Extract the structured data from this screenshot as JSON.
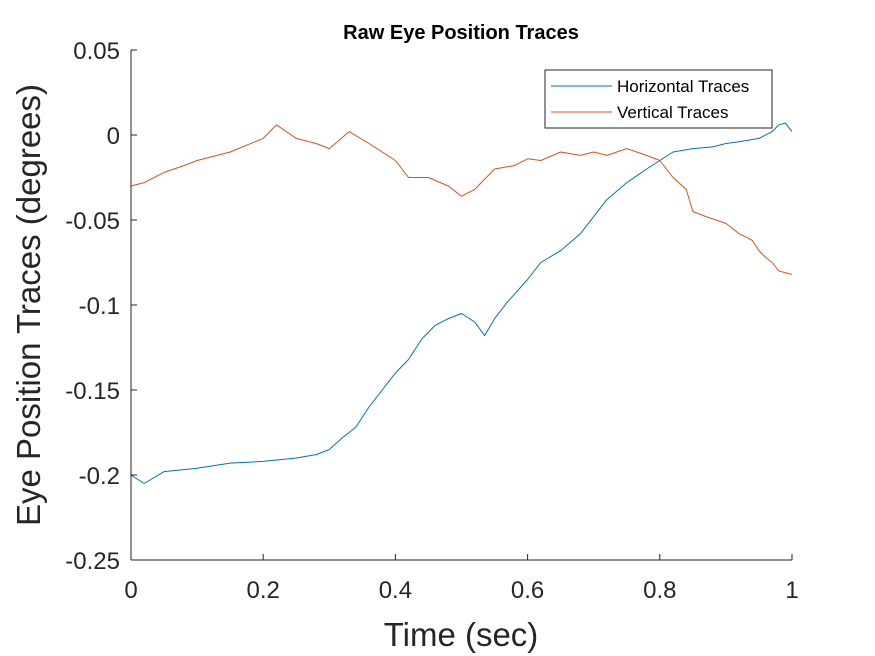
{
  "chart_data": {
    "type": "line",
    "title": "Raw Eye Position Traces",
    "xlabel": "Time (sec)",
    "ylabel": "Eye Position Traces (degrees)",
    "xlim": [
      0,
      1
    ],
    "ylim": [
      -0.25,
      0.05
    ],
    "x_ticks": [
      0,
      0.2,
      0.4,
      0.6,
      0.8,
      1
    ],
    "x_tick_labels": [
      "0",
      "0.2",
      "0.4",
      "0.6",
      "0.8",
      "1"
    ],
    "y_ticks": [
      -0.25,
      -0.2,
      -0.15,
      -0.1,
      -0.05,
      0,
      0.05
    ],
    "y_tick_labels": [
      "-0.25",
      "-0.2",
      "-0.15",
      "-0.1",
      "-0.05",
      "0",
      "0.05"
    ],
    "grid": false,
    "legend_position": "top-right",
    "series": [
      {
        "name": "Horizontal Traces",
        "color": "#0072BD",
        "x": [
          0,
          0.02,
          0.05,
          0.1,
          0.15,
          0.2,
          0.25,
          0.28,
          0.3,
          0.32,
          0.34,
          0.36,
          0.38,
          0.4,
          0.42,
          0.44,
          0.46,
          0.48,
          0.5,
          0.52,
          0.535,
          0.55,
          0.57,
          0.6,
          0.62,
          0.65,
          0.68,
          0.7,
          0.72,
          0.75,
          0.78,
          0.8,
          0.82,
          0.85,
          0.88,
          0.9,
          0.92,
          0.95,
          0.97,
          0.98,
          0.99,
          1.0
        ],
        "y": [
          -0.2,
          -0.205,
          -0.198,
          -0.196,
          -0.193,
          -0.192,
          -0.19,
          -0.188,
          -0.185,
          -0.178,
          -0.172,
          -0.16,
          -0.15,
          -0.14,
          -0.132,
          -0.12,
          -0.112,
          -0.108,
          -0.105,
          -0.11,
          -0.118,
          -0.108,
          -0.098,
          -0.085,
          -0.075,
          -0.068,
          -0.058,
          -0.048,
          -0.038,
          -0.028,
          -0.02,
          -0.015,
          -0.01,
          -0.008,
          -0.007,
          -0.005,
          -0.004,
          -0.002,
          0.002,
          0.006,
          0.007,
          0.002
        ]
      },
      {
        "name": "Vertical Traces",
        "color": "#D95319",
        "x": [
          0,
          0.02,
          0.05,
          0.08,
          0.1,
          0.15,
          0.2,
          0.22,
          0.25,
          0.28,
          0.3,
          0.33,
          0.36,
          0.38,
          0.4,
          0.42,
          0.45,
          0.48,
          0.5,
          0.52,
          0.55,
          0.58,
          0.6,
          0.62,
          0.65,
          0.68,
          0.7,
          0.72,
          0.75,
          0.78,
          0.8,
          0.82,
          0.84,
          0.85,
          0.87,
          0.9,
          0.92,
          0.94,
          0.95,
          0.96,
          0.97,
          0.98,
          1.0
        ],
        "y": [
          -0.03,
          -0.028,
          -0.022,
          -0.018,
          -0.015,
          -0.01,
          -0.002,
          0.006,
          -0.002,
          -0.005,
          -0.008,
          0.002,
          -0.005,
          -0.01,
          -0.015,
          -0.025,
          -0.025,
          -0.03,
          -0.036,
          -0.032,
          -0.02,
          -0.018,
          -0.014,
          -0.015,
          -0.01,
          -0.012,
          -0.01,
          -0.012,
          -0.008,
          -0.012,
          -0.015,
          -0.025,
          -0.032,
          -0.045,
          -0.048,
          -0.052,
          -0.058,
          -0.062,
          -0.068,
          -0.072,
          -0.075,
          -0.08,
          -0.082
        ]
      }
    ]
  }
}
